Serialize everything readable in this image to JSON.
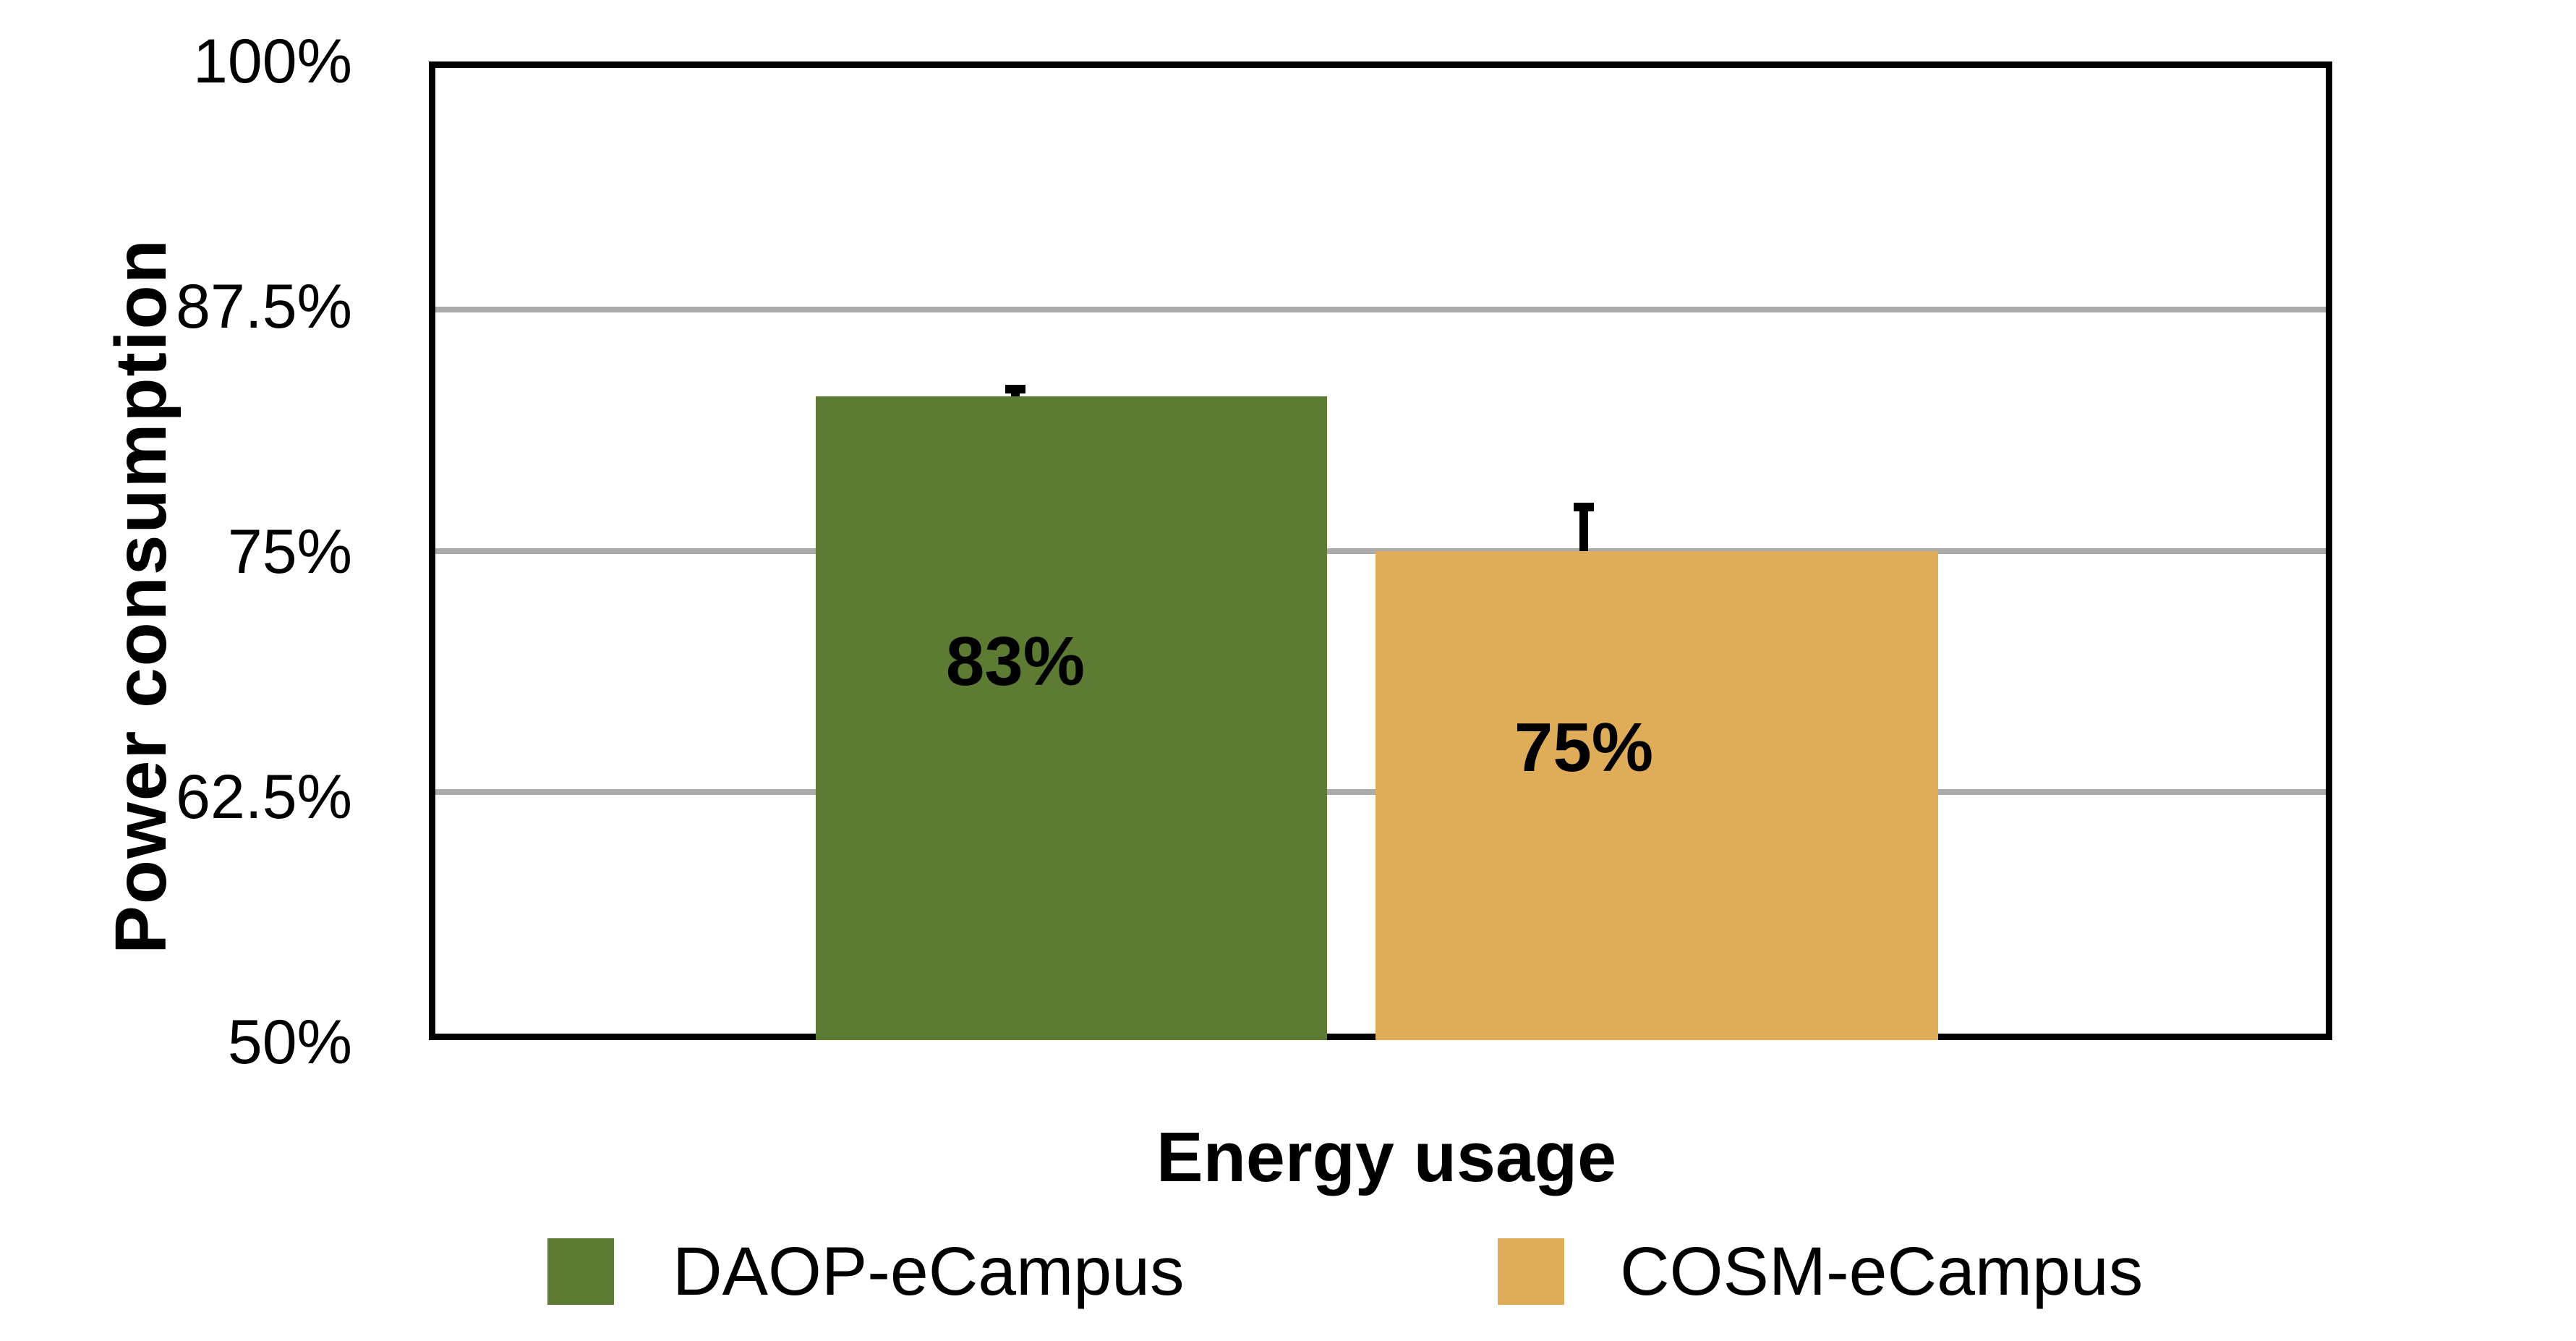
{
  "chart_data": {
    "type": "bar",
    "title": "",
    "categories": [
      "Energy usage"
    ],
    "series": [
      {
        "name": "DAOP-eCampus",
        "values": [
          83
        ],
        "labels": [
          "83%"
        ],
        "error_plus": [
          0.6
        ],
        "color": "#5D7B33"
      },
      {
        "name": "COSM-eCampus",
        "values": [
          75
        ],
        "labels": [
          "75%"
        ],
        "error_plus": [
          2.5
        ],
        "color": "#DFAC5A"
      }
    ],
    "xlabel": "Energy usage",
    "ylabel": "Power consumption",
    "ylim": [
      50,
      100
    ],
    "ytick_step": 12.5,
    "yticks": [
      "100%",
      "87.5%",
      "75%",
      "62.5%",
      "50%"
    ],
    "grid": true,
    "gridline_color": "#ABABAB",
    "axis_color": "#000000",
    "legend_position": "bottom"
  },
  "legend": {
    "items": [
      {
        "label": "DAOP-eCampus",
        "color": "#5D7B33"
      },
      {
        "label": "COSM-eCampus",
        "color": "#DFAC5A"
      }
    ]
  }
}
